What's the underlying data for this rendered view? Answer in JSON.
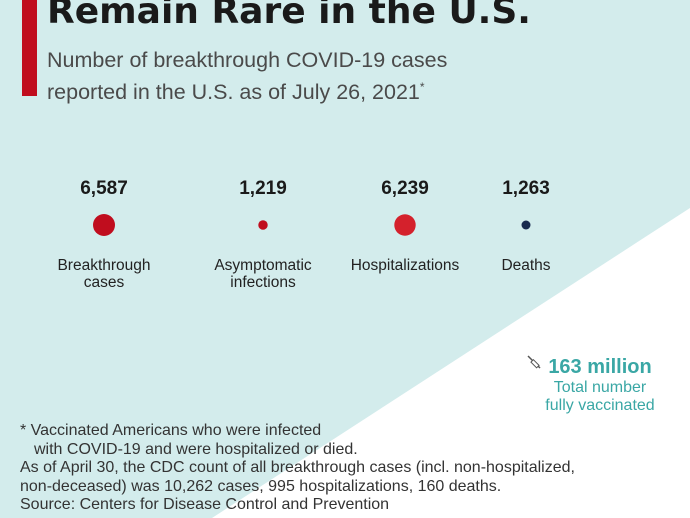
{
  "title": "Remain Rare in the U.S.",
  "subtitle_line1": "Number of breakthrough COVID-19 cases",
  "subtitle_line2": "reported in the U.S. as of July 26, 2021",
  "subtitle_mark": "*",
  "colors": {
    "accent": "#c00d1e",
    "deaths": "#172a4e",
    "teal": "#3aa7a5",
    "background": "#d3ecec"
  },
  "chart_data": {
    "type": "scatter",
    "title": "Number of breakthrough COVID-19 cases reported in the U.S. as of July 26, 2021",
    "encoding": "bubble area proportional to value",
    "categories": [
      "Breakthrough cases",
      "Asymptomatic infections",
      "Hospitalizations",
      "Deaths"
    ],
    "values": [
      6587,
      1219,
      6239,
      1263
    ],
    "value_labels": [
      "6,587",
      "1,219",
      "6,239",
      "1,263"
    ],
    "category_label_lines": [
      [
        "Breakthrough",
        "cases"
      ],
      [
        "Asymptomatic",
        "infections"
      ],
      [
        "Hospitalizations"
      ],
      [
        "Deaths"
      ]
    ],
    "colors": [
      "#c00d1e",
      "#c00d1e",
      "#d4212c",
      "#172a4e"
    ],
    "annotation": {
      "value": "163 million",
      "label_lines": [
        "Total number",
        "fully vaccinated"
      ]
    }
  },
  "footnote": {
    "line1": "* Vaccinated Americans who were infected",
    "line2": "with COVID-19 and were hospitalized or died.",
    "line3": "As of April 30, the CDC count of all breakthrough cases (incl. non-hospitalized,",
    "line4": "non-deceased) was 10,262 cases, 995 hospitalizations, 160 deaths.",
    "source": "Source: Centers for Disease Control and Prevention"
  }
}
